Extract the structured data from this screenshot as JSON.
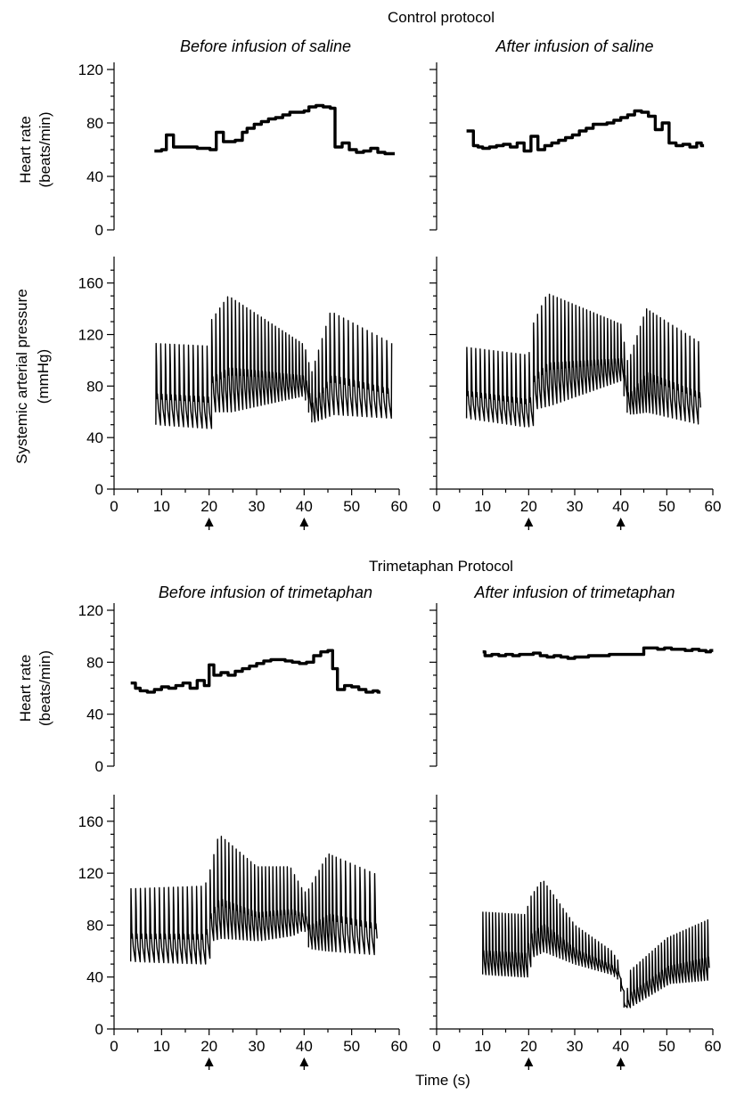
{
  "figure": {
    "protocols": [
      {
        "label": "Control protocol"
      },
      {
        "label": "Trimetaphan   Protocol"
      }
    ],
    "x_axis_label": "Time (s)",
    "arrow_markers_x": [
      20,
      40
    ]
  },
  "chart_data": [
    {
      "type": "line",
      "protocol": "Control protocol",
      "title": "Before infusion of saline",
      "ylabel": "Heart rate (beats/min)",
      "ylabel_lines": [
        "Heart rate",
        "(beats/min)"
      ],
      "xlim": [
        0,
        60
      ],
      "ylim": [
        0,
        120
      ],
      "yticks": [
        0,
        40,
        80,
        120
      ],
      "xticks": [],
      "series": [
        {
          "style": "step",
          "x": [
            8.5,
            10,
            11,
            12.5,
            15,
            17.5,
            20.2,
            21.5,
            23,
            25.5,
            27,
            28,
            29.5,
            31,
            32.5,
            34,
            35.5,
            37,
            38.5,
            40,
            41,
            42.5,
            44,
            45.5,
            46.5,
            48,
            49.5,
            51,
            52.5,
            54,
            55.5,
            57,
            58.5
          ],
          "y": [
            59,
            60,
            71,
            62,
            62,
            61,
            60,
            73,
            66,
            67,
            73,
            76,
            79,
            81,
            83,
            84,
            86,
            88,
            88,
            89,
            92,
            93,
            92,
            91,
            62,
            65,
            60,
            58,
            59,
            61,
            58,
            57,
            57
          ]
        }
      ]
    },
    {
      "type": "line",
      "protocol": "Control protocol",
      "title": "After infusion of saline",
      "ylabel": "Heart rate (beats/min)",
      "xlim": [
        0,
        60
      ],
      "ylim": [
        0,
        120
      ],
      "yticks": [
        0,
        40,
        80,
        120
      ],
      "xticks": [],
      "series": [
        {
          "style": "step",
          "x": [
            6.5,
            8,
            9,
            10,
            11.5,
            13,
            14.5,
            16,
            17.5,
            19,
            20.5,
            22,
            23.5,
            25,
            26.5,
            28,
            29.5,
            31,
            32.5,
            34,
            35.5,
            37,
            38.5,
            40,
            41.5,
            43,
            44.5,
            46,
            47.5,
            49,
            50.5,
            52,
            53.5,
            55,
            56.5,
            57.5
          ],
          "y": [
            74,
            63,
            62,
            61,
            62,
            63,
            64,
            62,
            65,
            59,
            70,
            60,
            63,
            65,
            67,
            69,
            71,
            74,
            76,
            79,
            79,
            80,
            82,
            84,
            86,
            89,
            88,
            85,
            75,
            80,
            65,
            63,
            64,
            62,
            65,
            63
          ]
        }
      ]
    },
    {
      "type": "line",
      "protocol": "Control protocol",
      "ylabel": "Systemic arterial pressure (mmHg)",
      "ylabel_lines": [
        "Systemic arterial pressure",
        "(mmHg)"
      ],
      "xlim": [
        0,
        60
      ],
      "ylim": [
        0,
        175
      ],
      "yticks": [
        0,
        40,
        80,
        120,
        160
      ],
      "xticks": [
        0,
        10,
        20,
        30,
        40,
        50,
        60
      ],
      "series": [
        {
          "style": "pulsatile",
          "x_start": 8.8,
          "x_end": 58.5,
          "beats_t": [
            8.8,
            20,
            20.2,
            24,
            40,
            41.5,
            45.5,
            58.5
          ],
          "heart_rate_t": [
            8.8,
            20,
            20.2,
            40,
            41,
            46,
            58.5
          ],
          "heart_rate": [
            62,
            61,
            70,
            88,
            92,
            62,
            57
          ],
          "systolic": [
            113,
            111,
            130,
            150,
            112,
            90,
            138,
            113
          ],
          "diastolic": [
            50,
            47,
            60,
            60,
            73,
            52,
            58,
            55
          ]
        }
      ]
    },
    {
      "type": "line",
      "protocol": "Control protocol",
      "ylabel": "Systemic arterial pressure (mmHg)",
      "xlim": [
        0,
        60
      ],
      "ylim": [
        0,
        175
      ],
      "yticks": [
        0,
        40,
        80,
        120,
        160
      ],
      "xticks": [
        0,
        10,
        20,
        30,
        40,
        50,
        60
      ],
      "series": [
        {
          "style": "pulsatile",
          "x_start": 6.5,
          "x_end": 57.5,
          "beats_t": [
            6.5,
            20,
            20.5,
            24,
            40,
            41.5,
            45.5,
            57.5
          ],
          "heart_rate_t": [
            6.5,
            20,
            20.5,
            40,
            45,
            50,
            57.5
          ],
          "heart_rate": [
            62,
            62,
            68,
            84,
            88,
            65,
            63
          ],
          "systolic": [
            110,
            104,
            125,
            152,
            128,
            98,
            140,
            113
          ],
          "diastolic": [
            55,
            48,
            62,
            65,
            85,
            58,
            60,
            50
          ]
        }
      ]
    },
    {
      "type": "line",
      "protocol": "Trimetaphan Protocol",
      "title": "Before infusion of trimetaphan",
      "ylabel": "Heart rate (beats/min)",
      "ylabel_lines": [
        "Heart rate",
        "(beats/min)"
      ],
      "xlim": [
        0,
        60
      ],
      "ylim": [
        0,
        120
      ],
      "yticks": [
        0,
        40,
        80,
        120
      ],
      "xticks": [],
      "series": [
        {
          "style": "step",
          "x": [
            3.5,
            4.5,
            5.5,
            7,
            8.5,
            10,
            11.5,
            13,
            14.5,
            16,
            17.5,
            19,
            20,
            21,
            22.5,
            24,
            25.5,
            27,
            28.5,
            30,
            31.5,
            33,
            34.5,
            36,
            37.5,
            39,
            40.5,
            42,
            43.5,
            45,
            46,
            47,
            48.5,
            50,
            51.5,
            53,
            54.5,
            55.5
          ],
          "y": [
            64,
            60,
            58,
            57,
            59,
            61,
            60,
            62,
            64,
            60,
            66,
            62,
            78,
            70,
            72,
            70,
            73,
            75,
            77,
            79,
            81,
            82,
            82,
            81,
            80,
            79,
            80,
            85,
            88,
            89,
            75,
            59,
            62,
            61,
            59,
            57,
            58,
            57
          ]
        }
      ]
    },
    {
      "type": "line",
      "protocol": "Trimetaphan Protocol",
      "title": "After infusion of trimetaphan",
      "ylabel": "Heart rate (beats/min)",
      "xlim": [
        0,
        60
      ],
      "ylim": [
        0,
        120
      ],
      "yticks": [
        0,
        40,
        80,
        120
      ],
      "xticks": [],
      "series": [
        {
          "style": "step",
          "x": [
            10,
            10.5,
            12,
            13.5,
            15,
            16.5,
            18,
            19.5,
            21,
            22.5,
            24,
            25.5,
            27,
            28.5,
            30,
            31.5,
            33,
            34.5,
            36,
            37.5,
            39,
            40.5,
            42,
            43.5,
            45,
            46.5,
            48,
            49.5,
            51,
            52.5,
            54,
            55.5,
            57,
            58.5,
            59.5
          ],
          "y": [
            88,
            85,
            86,
            85,
            86,
            85,
            86,
            86,
            87,
            85,
            84,
            85,
            84,
            83,
            84,
            84,
            85,
            85,
            85,
            86,
            86,
            86,
            86,
            86,
            91,
            91,
            90,
            91,
            90,
            90,
            89,
            90,
            89,
            88,
            89
          ]
        }
      ]
    },
    {
      "type": "line",
      "protocol": "Trimetaphan Protocol",
      "ylabel": "Systemic arterial pressure (mmHg)",
      "xlim": [
        0,
        60
      ],
      "ylim": [
        0,
        175
      ],
      "yticks": [
        0,
        40,
        80,
        120,
        160
      ],
      "xticks": [
        0,
        10,
        20,
        30,
        40,
        50,
        60
      ],
      "series": [
        {
          "style": "pulsatile",
          "x_start": 3.5,
          "x_end": 55.8,
          "beats_t": [
            3.5,
            19,
            20,
            22,
            30,
            37,
            40,
            41,
            45,
            55.8
          ],
          "heart_rate_t": [
            3.5,
            19,
            20,
            40,
            45,
            47,
            55.8
          ],
          "heart_rate": [
            60,
            62,
            76,
            80,
            88,
            60,
            57
          ],
          "systolic": [
            108,
            110,
            120,
            150,
            125,
            125,
            105,
            108,
            135,
            118
          ],
          "diastolic": [
            52,
            50,
            68,
            70,
            68,
            72,
            78,
            62,
            60,
            57
          ]
        }
      ]
    },
    {
      "type": "line",
      "protocol": "Trimetaphan Protocol",
      "ylabel": "Systemic arterial pressure (mmHg)",
      "xlim": [
        0,
        60
      ],
      "ylim": [
        0,
        175
      ],
      "yticks": [
        0,
        40,
        80,
        120,
        160
      ],
      "xticks": [
        0,
        10,
        20,
        30,
        40,
        50,
        60
      ],
      "series": [
        {
          "style": "pulsatile",
          "x_start": 10,
          "x_end": 59.5,
          "beats_t": [
            10,
            19.5,
            20,
            23,
            30,
            38,
            39.5,
            40.8,
            42,
            50,
            59.5
          ],
          "heart_rate_t": [
            10,
            40,
            45,
            59.5
          ],
          "heart_rate": [
            86,
            86,
            90,
            89
          ],
          "systolic": [
            90,
            88,
            100,
            115,
            80,
            60,
            52,
            18,
            45,
            70,
            85
          ],
          "diastolic": [
            42,
            40,
            55,
            60,
            50,
            42,
            38,
            15,
            18,
            35,
            38
          ]
        }
      ]
    }
  ]
}
